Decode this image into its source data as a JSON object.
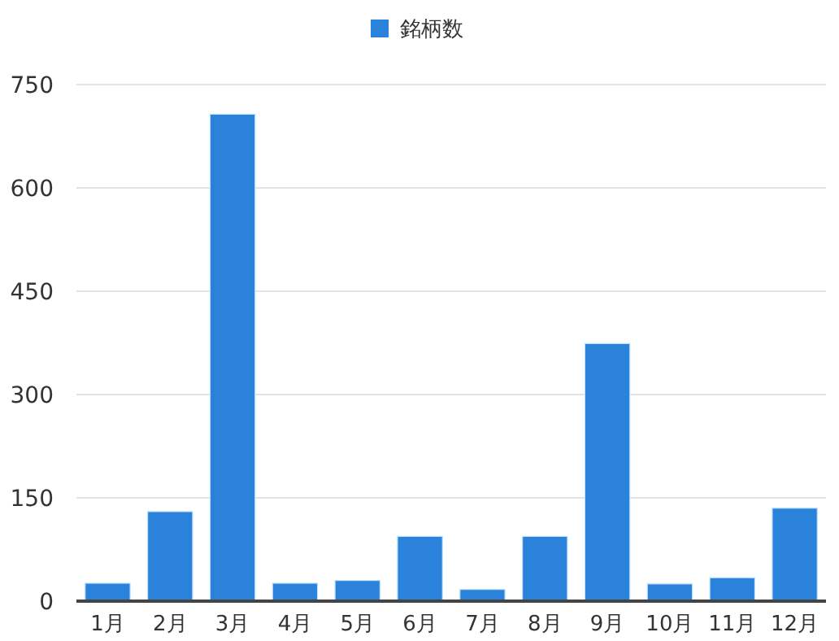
{
  "chart_data": {
    "type": "bar",
    "categories": [
      "1月",
      "2月",
      "3月",
      "4月",
      "5月",
      "6月",
      "7月",
      "8月",
      "9月",
      "10月",
      "11月",
      "12月"
    ],
    "series": [
      {
        "name": "銘柄数",
        "color": "#2a82da",
        "values": [
          26,
          130,
          707,
          26,
          30,
          94,
          17,
          94,
          374,
          25,
          34,
          135
        ]
      }
    ],
    "ylim": [
      0,
      750
    ],
    "yticks": [
      0,
      150,
      300,
      450,
      600,
      750
    ],
    "grid": "y",
    "legend": "top"
  }
}
